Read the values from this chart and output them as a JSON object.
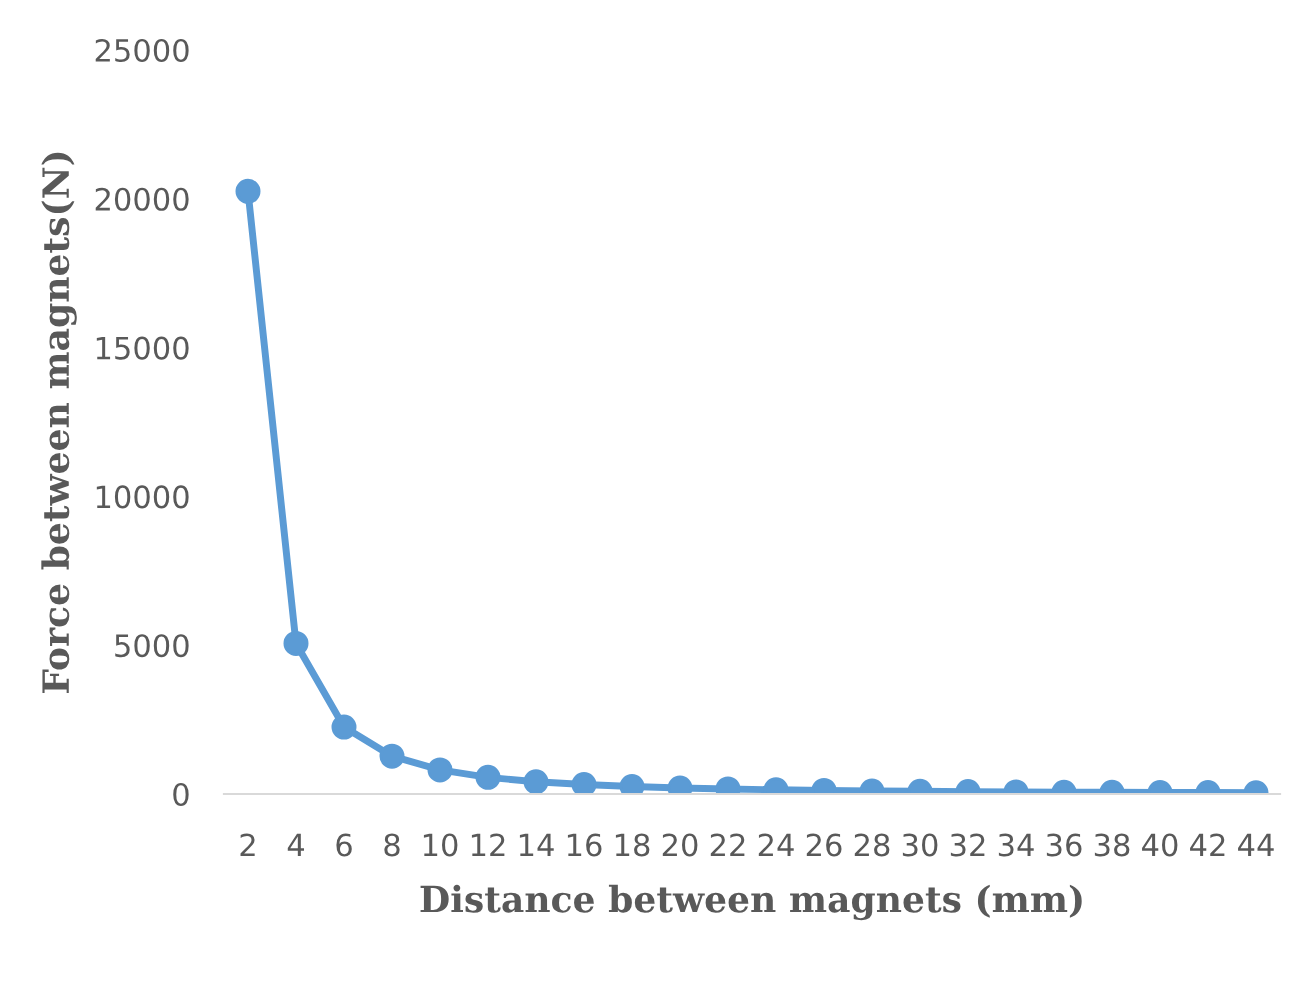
{
  "chart_data": {
    "type": "line",
    "xlabel": "Distance between magnets (mm)",
    "ylabel": "Force between magnets(N)",
    "categories": [
      "2",
      "4",
      "6",
      "8",
      "10",
      "12",
      "14",
      "16",
      "18",
      "20",
      "22",
      "24",
      "26",
      "28",
      "30",
      "32",
      "34",
      "36",
      "38",
      "40",
      "42",
      "44"
    ],
    "series": [
      {
        "color": "#5b9bd5",
        "values": [
          20250,
          5060,
          2250,
          1270,
          810,
          560,
          410,
          320,
          250,
          200,
          170,
          140,
          120,
          100,
          90,
          80,
          70,
          60,
          60,
          50,
          50,
          40
        ]
      }
    ],
    "ylim": [
      0,
      25000
    ],
    "yticks": [
      0,
      5000,
      10000,
      15000,
      20000,
      25000
    ],
    "grid": false,
    "marker": "circle",
    "line_style": "solid",
    "legend": false
  }
}
